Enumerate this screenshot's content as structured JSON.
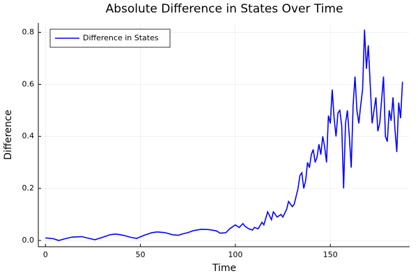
{
  "chart_data": {
    "type": "line",
    "title": "Absolute Difference in States Over Time",
    "x_label": "Time",
    "y_label": "Difference",
    "x": [
      0,
      4,
      7,
      10,
      14,
      19,
      23,
      26,
      30,
      34,
      37,
      41,
      45,
      48,
      52,
      56,
      59,
      63,
      67,
      70,
      72,
      75,
      78,
      82,
      86,
      90,
      92,
      95,
      97,
      100,
      102,
      104,
      105,
      107,
      109,
      110,
      112,
      114,
      115,
      117,
      119,
      120,
      122,
      124,
      125,
      127,
      128,
      130,
      131,
      133,
      134,
      135,
      136,
      137,
      138,
      139,
      140,
      141,
      142,
      143,
      144,
      145,
      146,
      147,
      148,
      149,
      150,
      151,
      152,
      153,
      154,
      155,
      156,
      157,
      158,
      159,
      160,
      161,
      162,
      163,
      164,
      165,
      166,
      167,
      168,
      169,
      170,
      171,
      172,
      173,
      174,
      175,
      176,
      177,
      178,
      179,
      180,
      181,
      182,
      183,
      184,
      185,
      186,
      187,
      188
    ],
    "series": [
      {
        "name": "Difference in States",
        "color": "#0000ff",
        "values": [
          0.01,
          0.007,
          0.0,
          0.006,
          0.013,
          0.015,
          0.008,
          0.003,
          0.012,
          0.022,
          0.025,
          0.02,
          0.012,
          0.008,
          0.02,
          0.03,
          0.033,
          0.03,
          0.022,
          0.02,
          0.025,
          0.03,
          0.038,
          0.043,
          0.042,
          0.037,
          0.028,
          0.03,
          0.045,
          0.06,
          0.05,
          0.065,
          0.055,
          0.045,
          0.04,
          0.05,
          0.045,
          0.07,
          0.06,
          0.11,
          0.08,
          0.11,
          0.09,
          0.1,
          0.09,
          0.12,
          0.15,
          0.13,
          0.14,
          0.2,
          0.25,
          0.26,
          0.2,
          0.23,
          0.3,
          0.28,
          0.33,
          0.35,
          0.3,
          0.32,
          0.37,
          0.33,
          0.4,
          0.36,
          0.3,
          0.48,
          0.45,
          0.58,
          0.47,
          0.4,
          0.49,
          0.5,
          0.44,
          0.2,
          0.45,
          0.5,
          0.4,
          0.28,
          0.52,
          0.63,
          0.5,
          0.45,
          0.52,
          0.58,
          0.81,
          0.66,
          0.75,
          0.6,
          0.45,
          0.5,
          0.55,
          0.42,
          0.45,
          0.54,
          0.63,
          0.4,
          0.38,
          0.5,
          0.46,
          0.55,
          0.43,
          0.34,
          0.53,
          0.47,
          0.61
        ]
      }
    ],
    "xlim": [
      -3.76,
      191.76
    ],
    "ylim": [
      -0.024,
      0.836
    ],
    "xticks": [
      0,
      50,
      100,
      150
    ],
    "yticks": [
      {
        "value": 0,
        "label": "0.0"
      },
      0.2,
      0.4,
      0.6,
      0.8
    ],
    "grid": true,
    "legend": "top-left"
  }
}
